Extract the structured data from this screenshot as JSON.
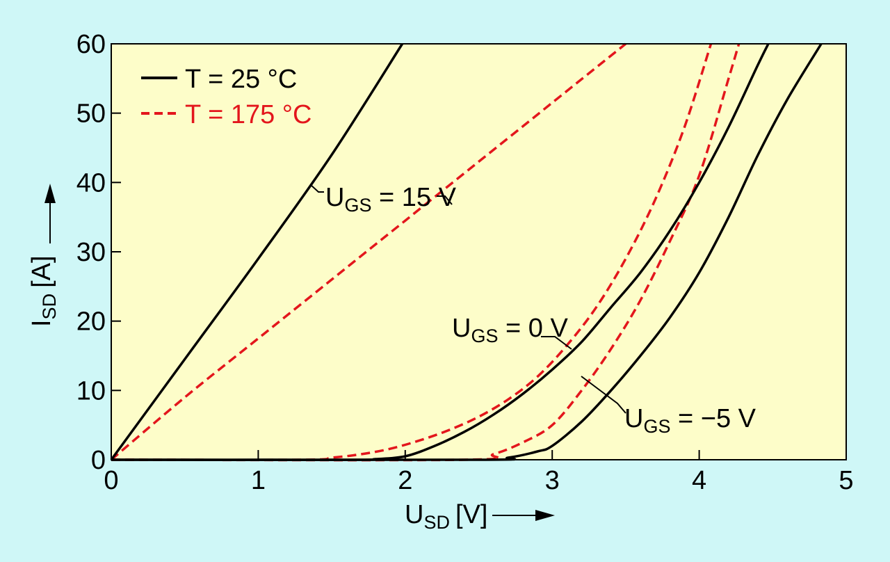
{
  "chart_data": {
    "type": "line",
    "title": "",
    "xlabel": {
      "main": "U",
      "sub": "SD",
      "unit": "[V]"
    },
    "ylabel": {
      "main": "I",
      "sub": "SD",
      "unit": "[A]"
    },
    "xlim": [
      0,
      5
    ],
    "ylim": [
      0,
      60
    ],
    "xticks": [
      "0",
      "1",
      "2",
      "3",
      "4",
      "5"
    ],
    "yticks": [
      "0",
      "10",
      "20",
      "30",
      "40",
      "50",
      "60"
    ],
    "grid": false,
    "background": "#fdfdc9",
    "page_background": "#cff7f7",
    "legend": {
      "placement": "top-left",
      "entries": [
        {
          "label": "T = 25 °C",
          "style": "solid",
          "color": "#000000"
        },
        {
          "label": "T = 175 °C",
          "style": "dashed",
          "color": "#e3161c"
        }
      ]
    },
    "series": [
      {
        "group": "UGS = 15 V",
        "temperature": "T = 25 °C",
        "style": "solid",
        "color": "#000000",
        "x": [
          0,
          0.5,
          1.0,
          1.5,
          1.98
        ],
        "y": [
          0,
          14.5,
          29,
          44,
          60
        ]
      },
      {
        "group": "UGS = 15 V",
        "temperature": "T = 175 °C",
        "style": "dashed",
        "color": "#e3161c",
        "x": [
          0,
          0.5,
          1.0,
          1.5,
          2.0,
          2.5,
          3.0,
          3.5
        ],
        "y": [
          0,
          9,
          17.5,
          26,
          34.5,
          43,
          51.5,
          60
        ]
      },
      {
        "group": "UGS = 0 V",
        "temperature": "T = 25 °C",
        "style": "solid",
        "color": "#000000",
        "x": [
          0,
          1.6,
          1.8,
          2.0,
          2.2,
          2.4,
          2.6,
          2.8,
          3.0,
          3.2,
          3.4,
          3.6,
          3.8,
          4.0,
          4.2,
          4.4,
          4.47
        ],
        "y": [
          0,
          0,
          0.1,
          0.5,
          2,
          4,
          6.5,
          9.5,
          13,
          17,
          22,
          27,
          33,
          40,
          48,
          57,
          60
        ]
      },
      {
        "group": "UGS = 0 V",
        "temperature": "T = 175 °C",
        "style": "dashed",
        "color": "#e3161c",
        "x": [
          0,
          1.3,
          1.5,
          1.7,
          1.9,
          2.1,
          2.3,
          2.5,
          2.7,
          2.9,
          3.1,
          3.3,
          3.5,
          3.7,
          3.9,
          4.08
        ],
        "y": [
          0,
          0,
          0.3,
          0.8,
          1.6,
          2.8,
          4.3,
          6.2,
          8.7,
          12,
          16.5,
          22,
          29,
          37.5,
          48,
          60
        ]
      },
      {
        "group": "UGS = -5 V",
        "temperature": "T = 25 °C",
        "style": "solid",
        "color": "#000000",
        "x": [
          0,
          2.5,
          2.7,
          2.9,
          3.0,
          3.2,
          3.4,
          3.6,
          3.8,
          4.0,
          4.2,
          4.4,
          4.6,
          4.83
        ],
        "y": [
          0,
          0,
          0.3,
          1.2,
          2,
          5.5,
          10,
          15,
          20.5,
          27,
          35,
          44,
          52,
          60
        ]
      },
      {
        "group": "UGS = -5 V",
        "temperature": "T = 175 °C",
        "style": "dashed",
        "color": "#e3161c",
        "x": [
          0,
          2.4,
          2.6,
          2.8,
          3.0,
          3.2,
          3.4,
          3.6,
          3.8,
          4.0,
          4.2,
          4.27
        ],
        "y": [
          0,
          0,
          0.8,
          2.5,
          5,
          10,
          16,
          23,
          31.5,
          41,
          55,
          60
        ]
      }
    ],
    "annotations": [
      {
        "main": "U",
        "sub": "GS",
        "rest": " = 15 V"
      },
      {
        "main": "U",
        "sub": "GS",
        "rest": " = 0 V"
      },
      {
        "main": "U",
        "sub": "GS",
        "rest": " = −5 V"
      }
    ]
  }
}
